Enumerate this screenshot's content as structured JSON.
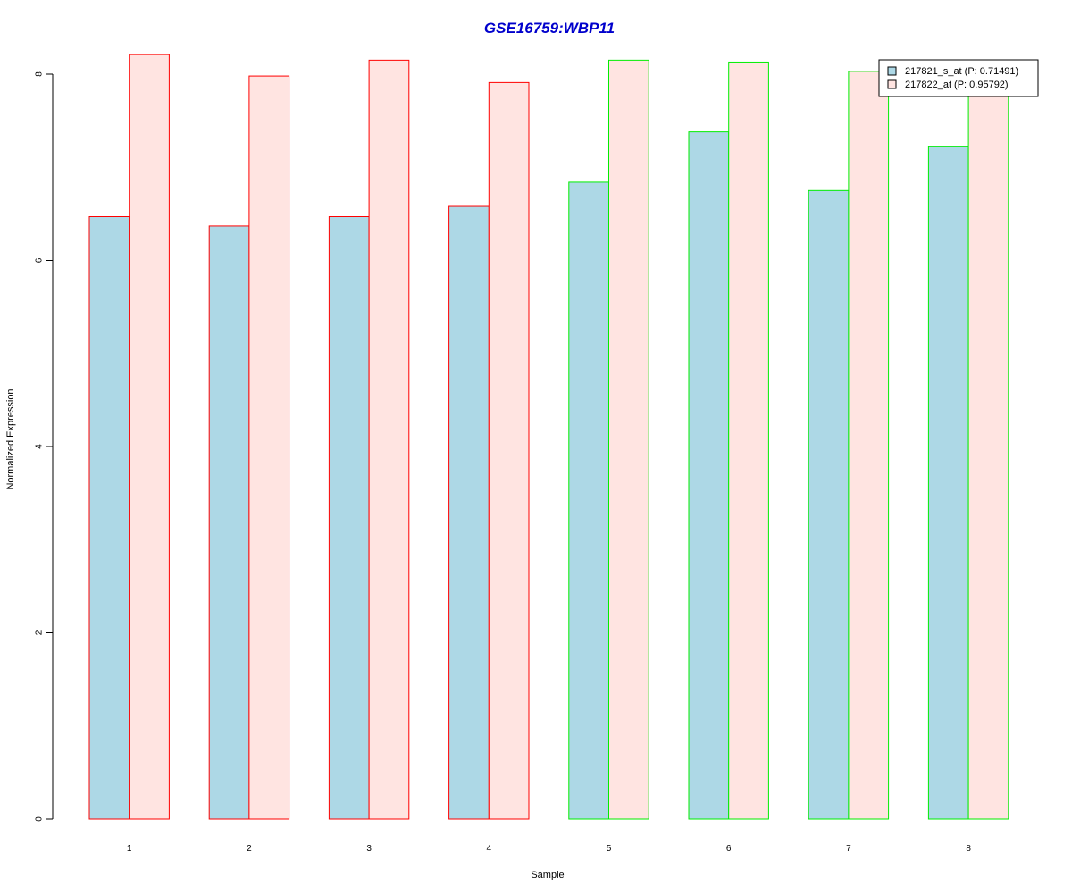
{
  "chart_data": {
    "type": "bar",
    "title": "GSE16759:WBP11",
    "title_color": "#0000cc",
    "xlabel": "Sample",
    "ylabel": "Normalized Expression",
    "categories": [
      "1",
      "2",
      "3",
      "4",
      "5",
      "6",
      "7",
      "8"
    ],
    "ylim": [
      0,
      8.15
    ],
    "yticks": [
      "0",
      "2",
      "4",
      "6",
      "8"
    ],
    "series": [
      {
        "name": "217821_s_at (P: 0.71491)",
        "fill": "#add8e6",
        "values": [
          6.47,
          6.37,
          6.47,
          6.58,
          6.84,
          7.38,
          6.75,
          7.22
        ]
      },
      {
        "name": "217822_at (P: 0.95792)",
        "fill": "#ffe4e1",
        "values": [
          8.21,
          7.98,
          8.15,
          7.91,
          8.15,
          8.13,
          8.03,
          7.8
        ]
      }
    ],
    "group_colors": [
      "#ff0000",
      "#ff0000",
      "#ff0000",
      "#ff0000",
      "#00ee00",
      "#00ee00",
      "#00ee00",
      "#00ee00"
    ],
    "legend_position": "top-right",
    "grid": false
  }
}
